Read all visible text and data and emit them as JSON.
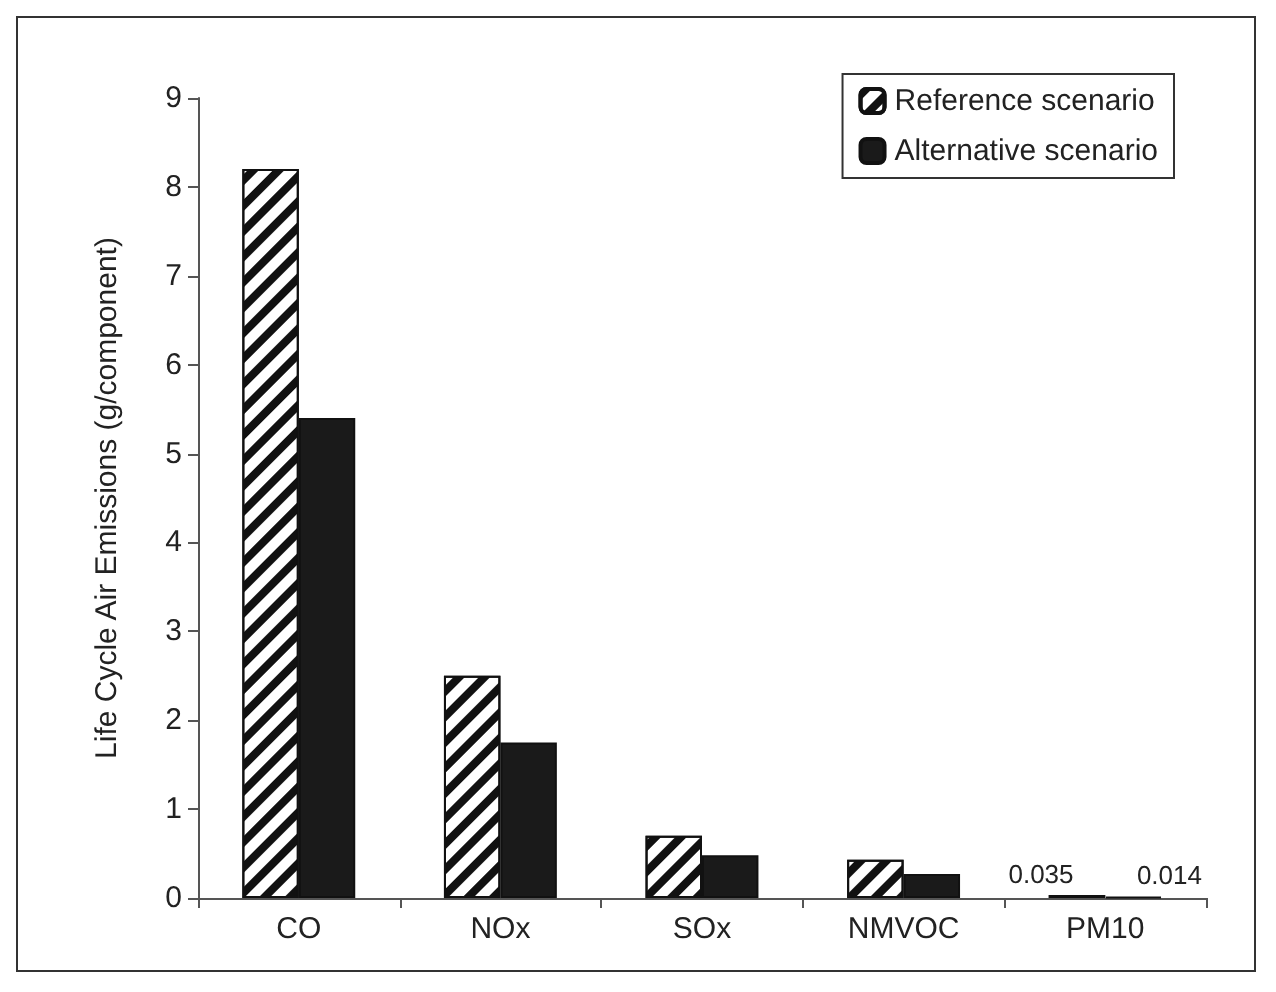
{
  "chart_data": {
    "type": "bar",
    "ylabel": "Life Cycle Air Emissions (g/component)",
    "categories": [
      "CO",
      "NOx",
      "SOx",
      "NMVOC",
      "PM10"
    ],
    "series": [
      {
        "name": "Reference scenario",
        "color": "#ffffff",
        "values": [
          8.2,
          2.5,
          0.7,
          0.43,
          0.035
        ],
        "value_labels": [
          null,
          null,
          null,
          null,
          "0.035"
        ]
      },
      {
        "name": "Alternative scenario",
        "color": "#1a1a1a",
        "values": [
          5.4,
          1.75,
          0.48,
          0.27,
          0.014
        ],
        "value_labels": [
          null,
          null,
          null,
          null,
          "0.014"
        ]
      }
    ],
    "ylim": [
      0,
      9
    ],
    "yticks": [
      0,
      1,
      2,
      3,
      4,
      5,
      6,
      7,
      8,
      9
    ],
    "grid": false,
    "legend": "top right"
  }
}
